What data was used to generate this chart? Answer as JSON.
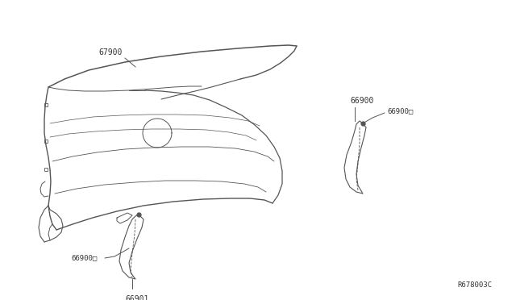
{
  "background_color": "#ffffff",
  "fig_width": 6.4,
  "fig_height": 3.72,
  "dpi": 100,
  "line_color": "#555555",
  "label_color": "#333333",
  "part_67900": "67900",
  "part_66900": "66900",
  "part_66900D_r": "66900□",
  "part_66900D_l": "66900□",
  "part_66901": "66901",
  "diagram_ref": "R678003C",
  "font_size": 6.5
}
